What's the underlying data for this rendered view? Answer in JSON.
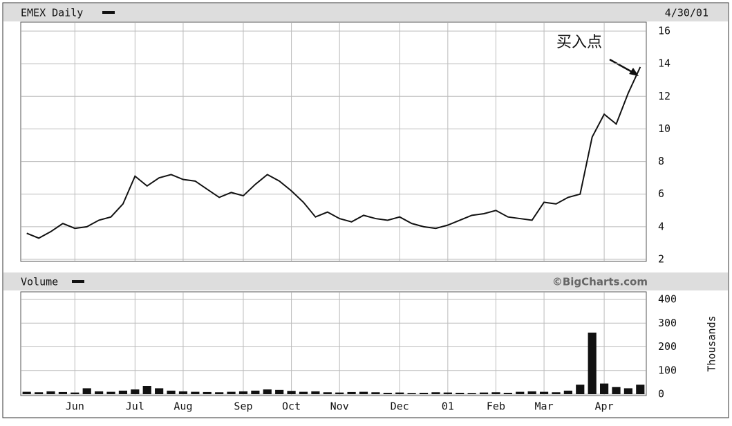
{
  "chart_data": [
    {
      "type": "line",
      "title": "EMEX Daily",
      "date": "4/30/01",
      "annotation": "买入点",
      "color": "#111111",
      "values": [
        3.6,
        3.3,
        3.7,
        4.2,
        3.9,
        4.0,
        4.4,
        4.6,
        5.4,
        7.1,
        6.5,
        7.0,
        7.2,
        6.9,
        6.8,
        6.3,
        5.8,
        6.1,
        5.9,
        6.6,
        7.2,
        6.8,
        6.2,
        5.5,
        4.6,
        4.9,
        4.5,
        4.3,
        4.7,
        4.5,
        4.4,
        4.6,
        4.2,
        4.0,
        3.9,
        4.1,
        4.4,
        4.7,
        4.8,
        5.0,
        4.6,
        4.5,
        4.4,
        5.5,
        5.4,
        5.8,
        6.0,
        9.5,
        10.9,
        10.3,
        12.2,
        13.8
      ],
      "ylim": [
        2,
        16
      ],
      "yticks": [
        2,
        4,
        6,
        8,
        10,
        12,
        14,
        16
      ],
      "grid": true
    },
    {
      "type": "bar",
      "title": "Volume",
      "credit": "©BigCharts.com",
      "y_label": "Thousands",
      "color": "#111111",
      "categories": [
        null,
        null,
        null,
        null,
        "Jun",
        null,
        null,
        null,
        null,
        "Jul",
        null,
        null,
        null,
        "Aug",
        null,
        null,
        null,
        null,
        "Sep",
        null,
        null,
        null,
        "Oct",
        null,
        null,
        null,
        "Nov",
        null,
        null,
        null,
        null,
        "Dec",
        null,
        null,
        null,
        "01",
        null,
        null,
        null,
        "Feb",
        null,
        null,
        null,
        "Mar",
        null,
        null,
        null,
        null,
        "Apr",
        null,
        null,
        null
      ],
      "values": [
        10,
        8,
        12,
        9,
        7,
        25,
        12,
        10,
        15,
        20,
        35,
        25,
        15,
        12,
        10,
        9,
        8,
        10,
        12,
        15,
        20,
        18,
        14,
        10,
        12,
        8,
        7,
        9,
        10,
        8,
        6,
        7,
        5,
        6,
        8,
        7,
        6,
        5,
        7,
        8,
        6,
        10,
        12,
        10,
        8,
        15,
        40,
        260,
        45,
        30,
        25,
        40
      ],
      "ylim": [
        0,
        400
      ],
      "yticks": [
        0,
        100,
        200,
        300,
        400
      ],
      "grid": true
    }
  ]
}
